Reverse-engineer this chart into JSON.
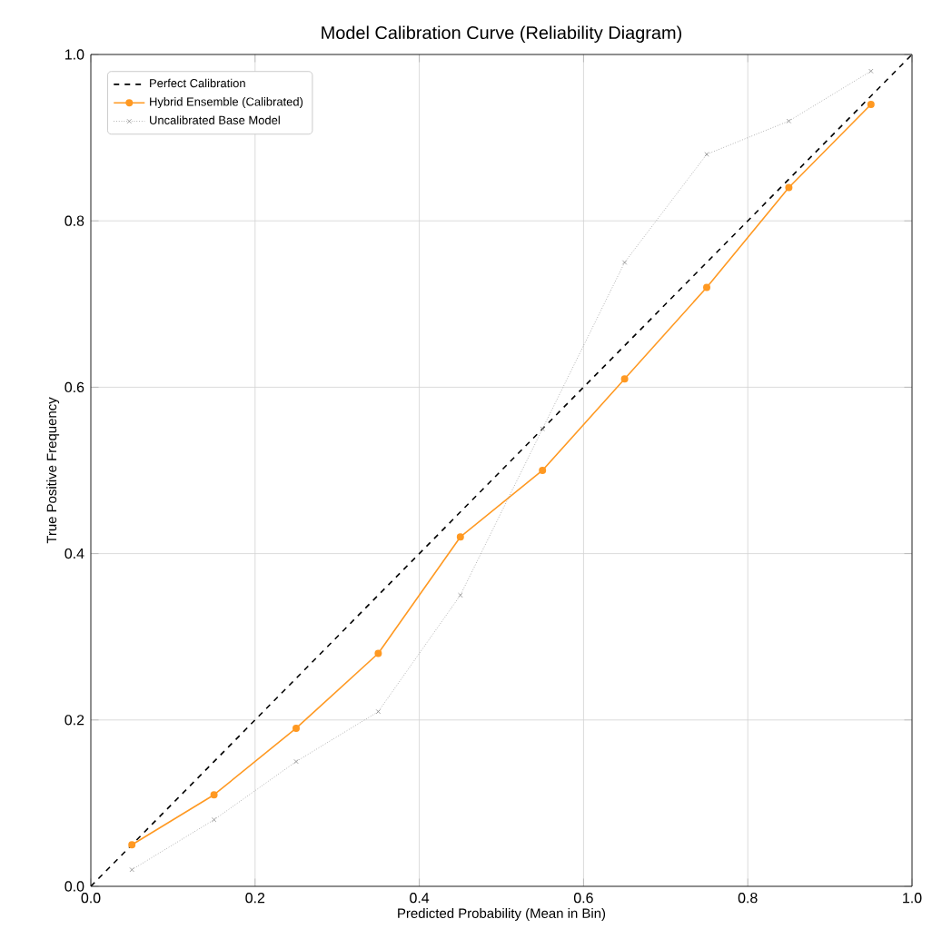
{
  "chart_data": {
    "type": "line",
    "title": "Model Calibration Curve (Reliability Diagram)",
    "xlabel": "Predicted Probability (Mean in Bin)",
    "ylabel": "True Positive Frequency",
    "series": [
      {
        "name": "Perfect Calibration",
        "color": "#000000",
        "x": [
          0,
          1
        ],
        "values": [
          0,
          1
        ],
        "marker": "none",
        "line_style": "dashed"
      },
      {
        "name": "Hybrid Ensemble (Calibrated)",
        "color": "#ff9922",
        "x": [
          0.05,
          0.15,
          0.25,
          0.35,
          0.45,
          0.55,
          0.65,
          0.75,
          0.85,
          0.95
        ],
        "values": [
          0.05,
          0.11,
          0.19,
          0.28,
          0.42,
          0.5,
          0.61,
          0.72,
          0.84,
          0.94
        ],
        "marker": "circle",
        "line_style": "solid"
      },
      {
        "name": "Uncalibrated Base Model",
        "color": "#888888",
        "x": [
          0.05,
          0.15,
          0.25,
          0.35,
          0.45,
          0.55,
          0.65,
          0.75,
          0.85,
          0.95
        ],
        "values": [
          0.02,
          0.08,
          0.15,
          0.21,
          0.35,
          0.55,
          0.75,
          0.88,
          0.92,
          0.98
        ],
        "marker": "cross",
        "line_style": "dotted"
      }
    ],
    "xlim": [
      0,
      1
    ],
    "ylim": [
      0,
      1
    ],
    "xticks": [
      {
        "value": 0,
        "label": "0.0"
      },
      0.2,
      0.4,
      0.6,
      0.8,
      {
        "value": 1,
        "label": "1.0"
      }
    ],
    "yticks": [
      {
        "value": 0,
        "label": "0.0"
      },
      0.2,
      0.4,
      0.6,
      0.8,
      {
        "value": 1,
        "label": "1.0"
      }
    ],
    "grid": true,
    "legend": "top left"
  }
}
